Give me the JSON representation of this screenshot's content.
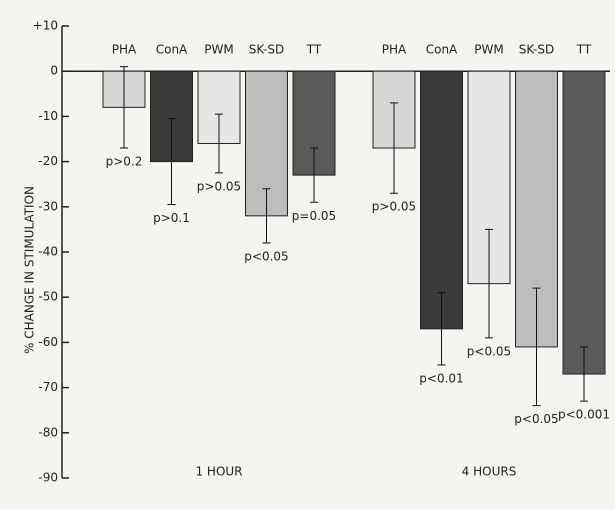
{
  "chart_data": {
    "type": "bar",
    "y_label": "% CHANGE IN STIMULATION",
    "ylim": [
      -90,
      10
    ],
    "yticks": [
      {
        "value": 10,
        "label": "+10"
      },
      0,
      -10,
      -20,
      -30,
      -40,
      -50,
      -60,
      -70,
      -80,
      -90
    ],
    "colors": [
      "#d6d6d6",
      "#3a3a3a",
      "#e6e6e6",
      "#bdbdbd",
      "#5a5a5a"
    ],
    "groups": [
      {
        "name": "1 HOUR",
        "categories": [
          "PHA",
          "ConA",
          "PWM",
          "SK-SD",
          "TT"
        ],
        "values": [
          -8,
          -20,
          -16,
          -32,
          -23
        ],
        "errors": [
          9,
          9.5,
          6.5,
          6,
          6
        ],
        "annotations": [
          "p>0.2",
          "p>0.1",
          "p>0.05",
          "p<0.05",
          "p=0.05"
        ]
      },
      {
        "name": "4 HOURS",
        "categories": [
          "PHA",
          "ConA",
          "PWM",
          "SK-SD",
          "TT"
        ],
        "values": [
          -17,
          -57,
          -47,
          -61,
          -67
        ],
        "errors": [
          10,
          8,
          12,
          13,
          6
        ],
        "annotations": [
          "p>0.05",
          "p<0.01",
          "p<0.05",
          "p<0.05",
          "p<0.001"
        ]
      }
    ]
  }
}
